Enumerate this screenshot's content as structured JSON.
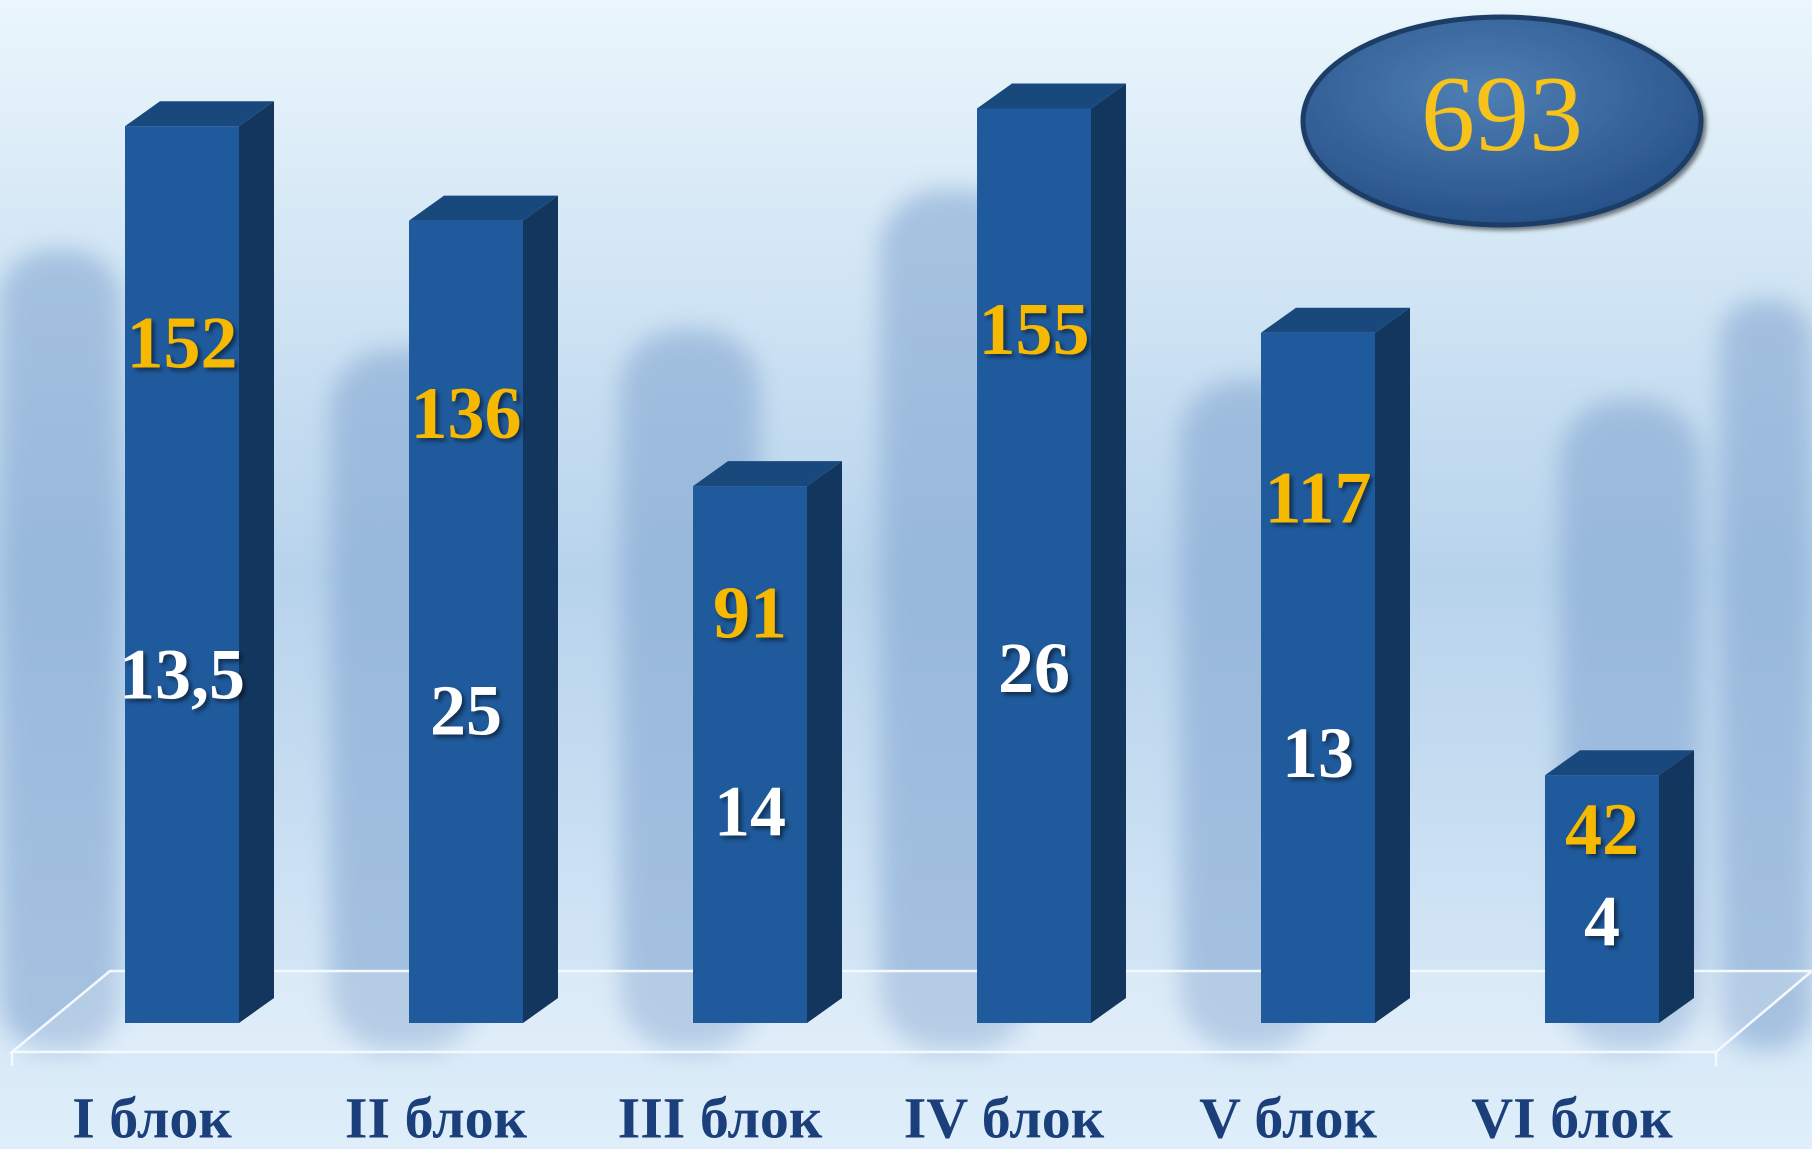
{
  "chart_data": {
    "type": "bar",
    "categories": [
      "I блок",
      "II блок",
      "III блок",
      "IV блок",
      "V блок",
      "VI блок"
    ],
    "values": [
      152,
      136,
      91,
      155,
      117,
      42
    ],
    "secondary_values": [
      13.5,
      25,
      14,
      26,
      13,
      4
    ],
    "secondary_value_labels": [
      "13,5",
      "25",
      "14",
      "26",
      "13",
      "4"
    ],
    "color": "#1f5a9c",
    "total": 693
  }
}
